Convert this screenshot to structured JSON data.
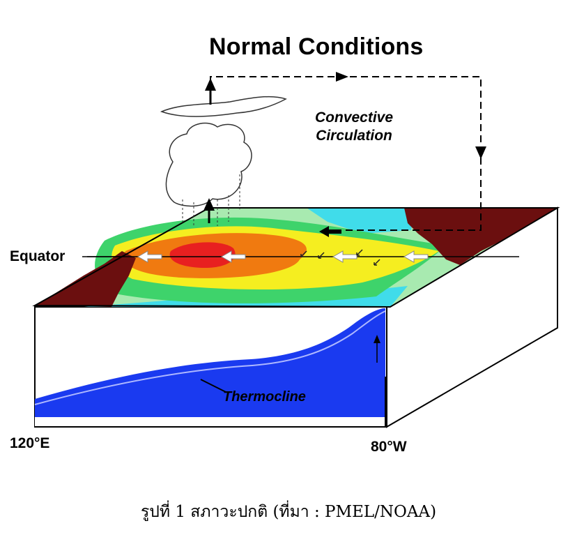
{
  "title": "Normal Conditions",
  "labels": {
    "convective_line1": "Convective",
    "convective_line2": "Circulation",
    "equator": "Equator",
    "thermocline": "Thermocline",
    "lon_west": "120°E",
    "lon_east": "80°W"
  },
  "caption": "รูปที่ 1 สภาวะปกติ (ที่มา : PMEL/NOAA)",
  "colors": {
    "land": "#6b0f0f",
    "warm_core": "#e82020",
    "orange": "#f07a10",
    "yellow": "#f5ee20",
    "green": "#3ed36b",
    "light_green": "#a8eab0",
    "cyan": "#40dcea",
    "deep_blue": "#1a3af0",
    "thermocline_line": "#aeb8ff"
  }
}
